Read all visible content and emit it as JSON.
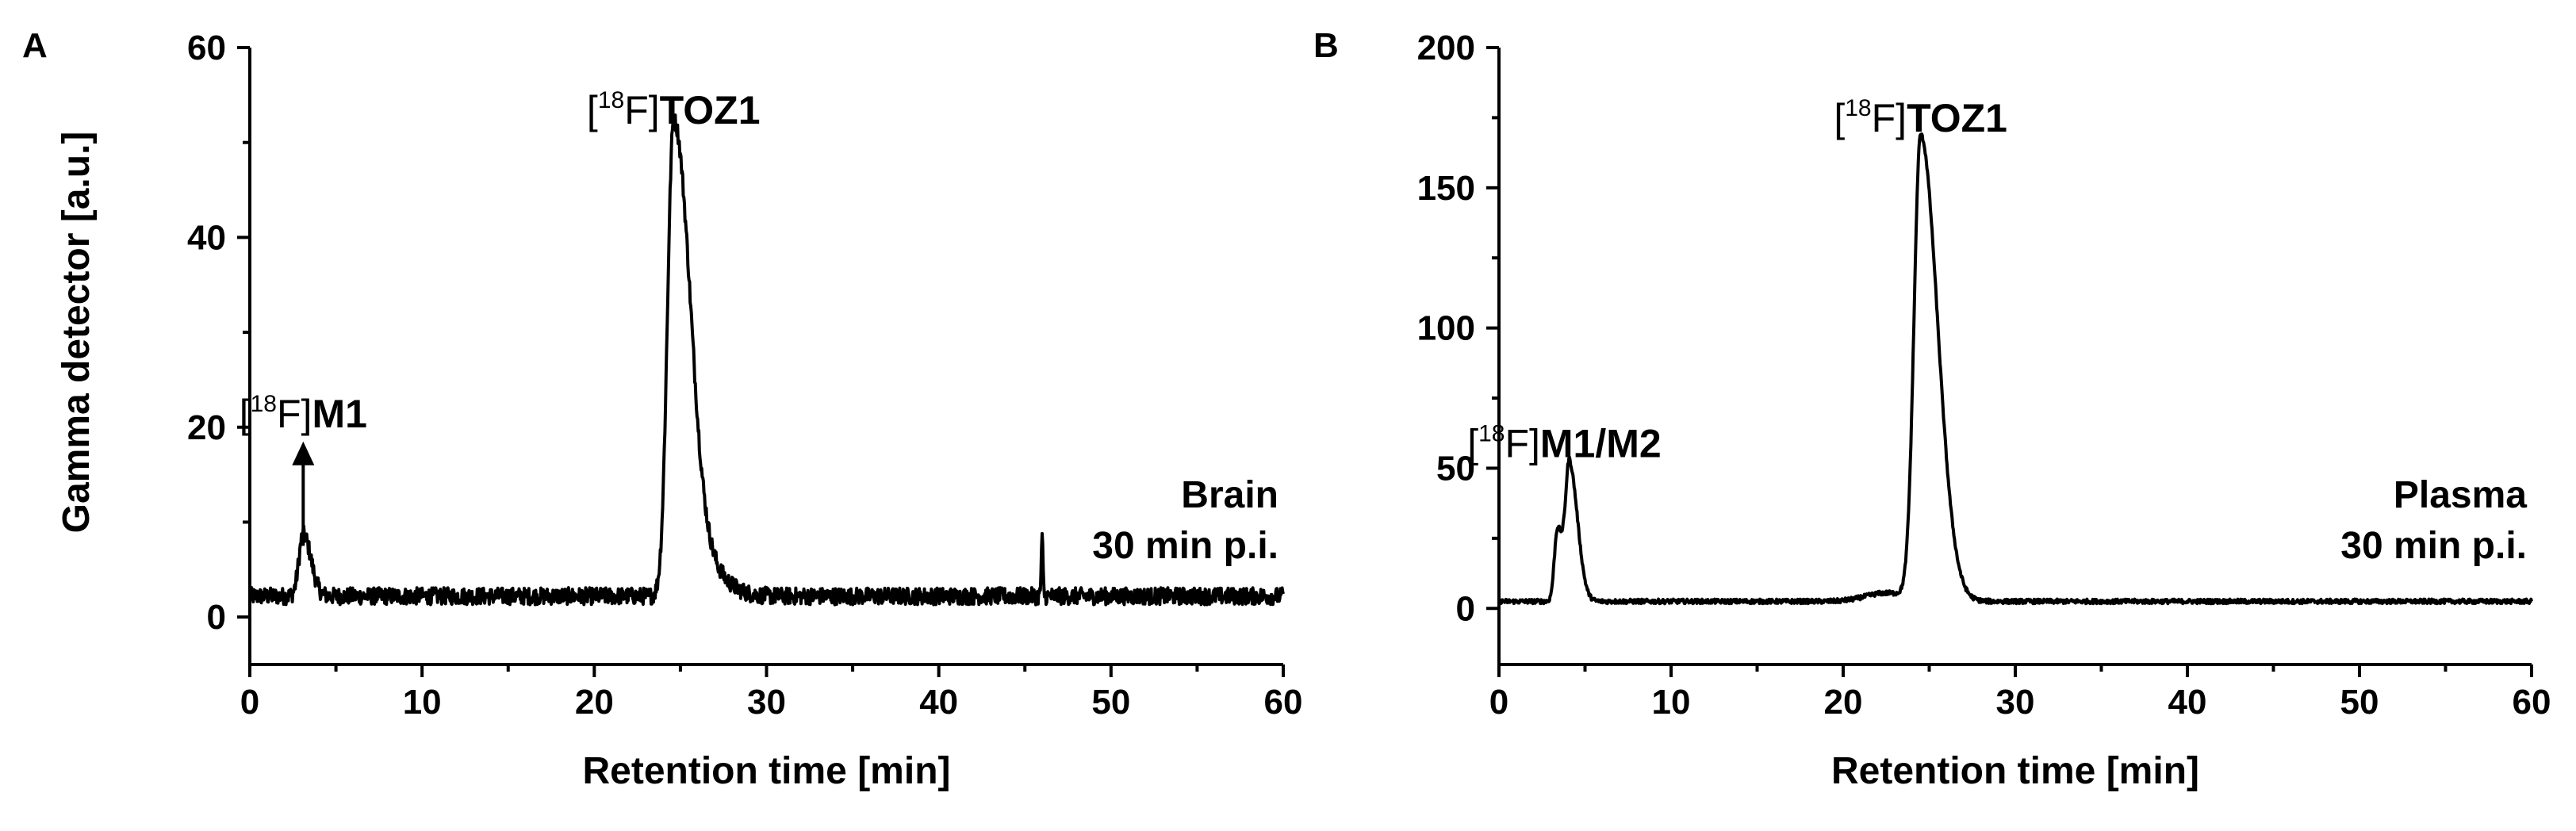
{
  "chart_data": [
    {
      "type": "line",
      "panel": "A",
      "xlabel": "Retention time [min]",
      "ylabel": "Gamma detector [a.u.]",
      "xlim": [
        0,
        60
      ],
      "ylim": [
        -5,
        60
      ],
      "xticks": [
        0,
        10,
        20,
        30,
        40,
        50,
        60
      ],
      "yticks": [
        0,
        20,
        40,
        60
      ],
      "baseline": 2.2,
      "noise": 0.9,
      "peaks": [
        {
          "x": 3.1,
          "y": 6.5,
          "sigma": 0.25,
          "tail": 0.2
        },
        {
          "x": 24.6,
          "y": 49.5,
          "sigma": 0.35,
          "tail": 0.55
        },
        {
          "x": 25.8,
          "y": 4,
          "sigma": 0.6,
          "tail": 0.8
        },
        {
          "x": 46,
          "y": 6,
          "sigma": 0.05,
          "tail": 0
        }
      ],
      "annotations": [
        {
          "prefix": "[",
          "sup": "18",
          "mid": "F]",
          "bold": "M1",
          "at_x": 3.1,
          "at_y": 20,
          "arrow_to_y": 7.5
        },
        {
          "prefix": "[",
          "sup": "18",
          "mid": "F]",
          "bold": "TOZ1",
          "at_x": 24.6,
          "at_y": 52
        }
      ],
      "condition": [
        "Brain",
        "30 min p.i."
      ]
    },
    {
      "type": "line",
      "panel": "B",
      "xlabel": "Retention time [min]",
      "ylabel": "",
      "xlim": [
        0,
        60
      ],
      "ylim": [
        -20,
        200
      ],
      "xticks": [
        0,
        10,
        20,
        30,
        40,
        50,
        60
      ],
      "yticks": [
        0,
        50,
        100,
        150,
        200
      ],
      "baseline": 2.5,
      "noise": 0.8,
      "peaks": [
        {
          "x": 3.4,
          "y": 26,
          "sigma": 0.18,
          "tail": 0.15
        },
        {
          "x": 4.1,
          "y": 48,
          "sigma": 0.22,
          "tail": 0.25
        },
        {
          "x": 24.5,
          "y": 165,
          "sigma": 0.38,
          "tail": 0.6
        },
        {
          "x": 22.5,
          "y": 3,
          "sigma": 1.2,
          "tail": 0.5
        }
      ],
      "annotations": [
        {
          "prefix": "[",
          "sup": "18",
          "mid": "F]",
          "bold": "M1/M2",
          "at_x": 3.8,
          "at_y": 54
        },
        {
          "prefix": "[",
          "sup": "18",
          "mid": "F]",
          "bold": "TOZ1",
          "at_x": 24.5,
          "at_y": 170
        }
      ],
      "condition": [
        "Plasma",
        "30 min p.i."
      ]
    }
  ]
}
